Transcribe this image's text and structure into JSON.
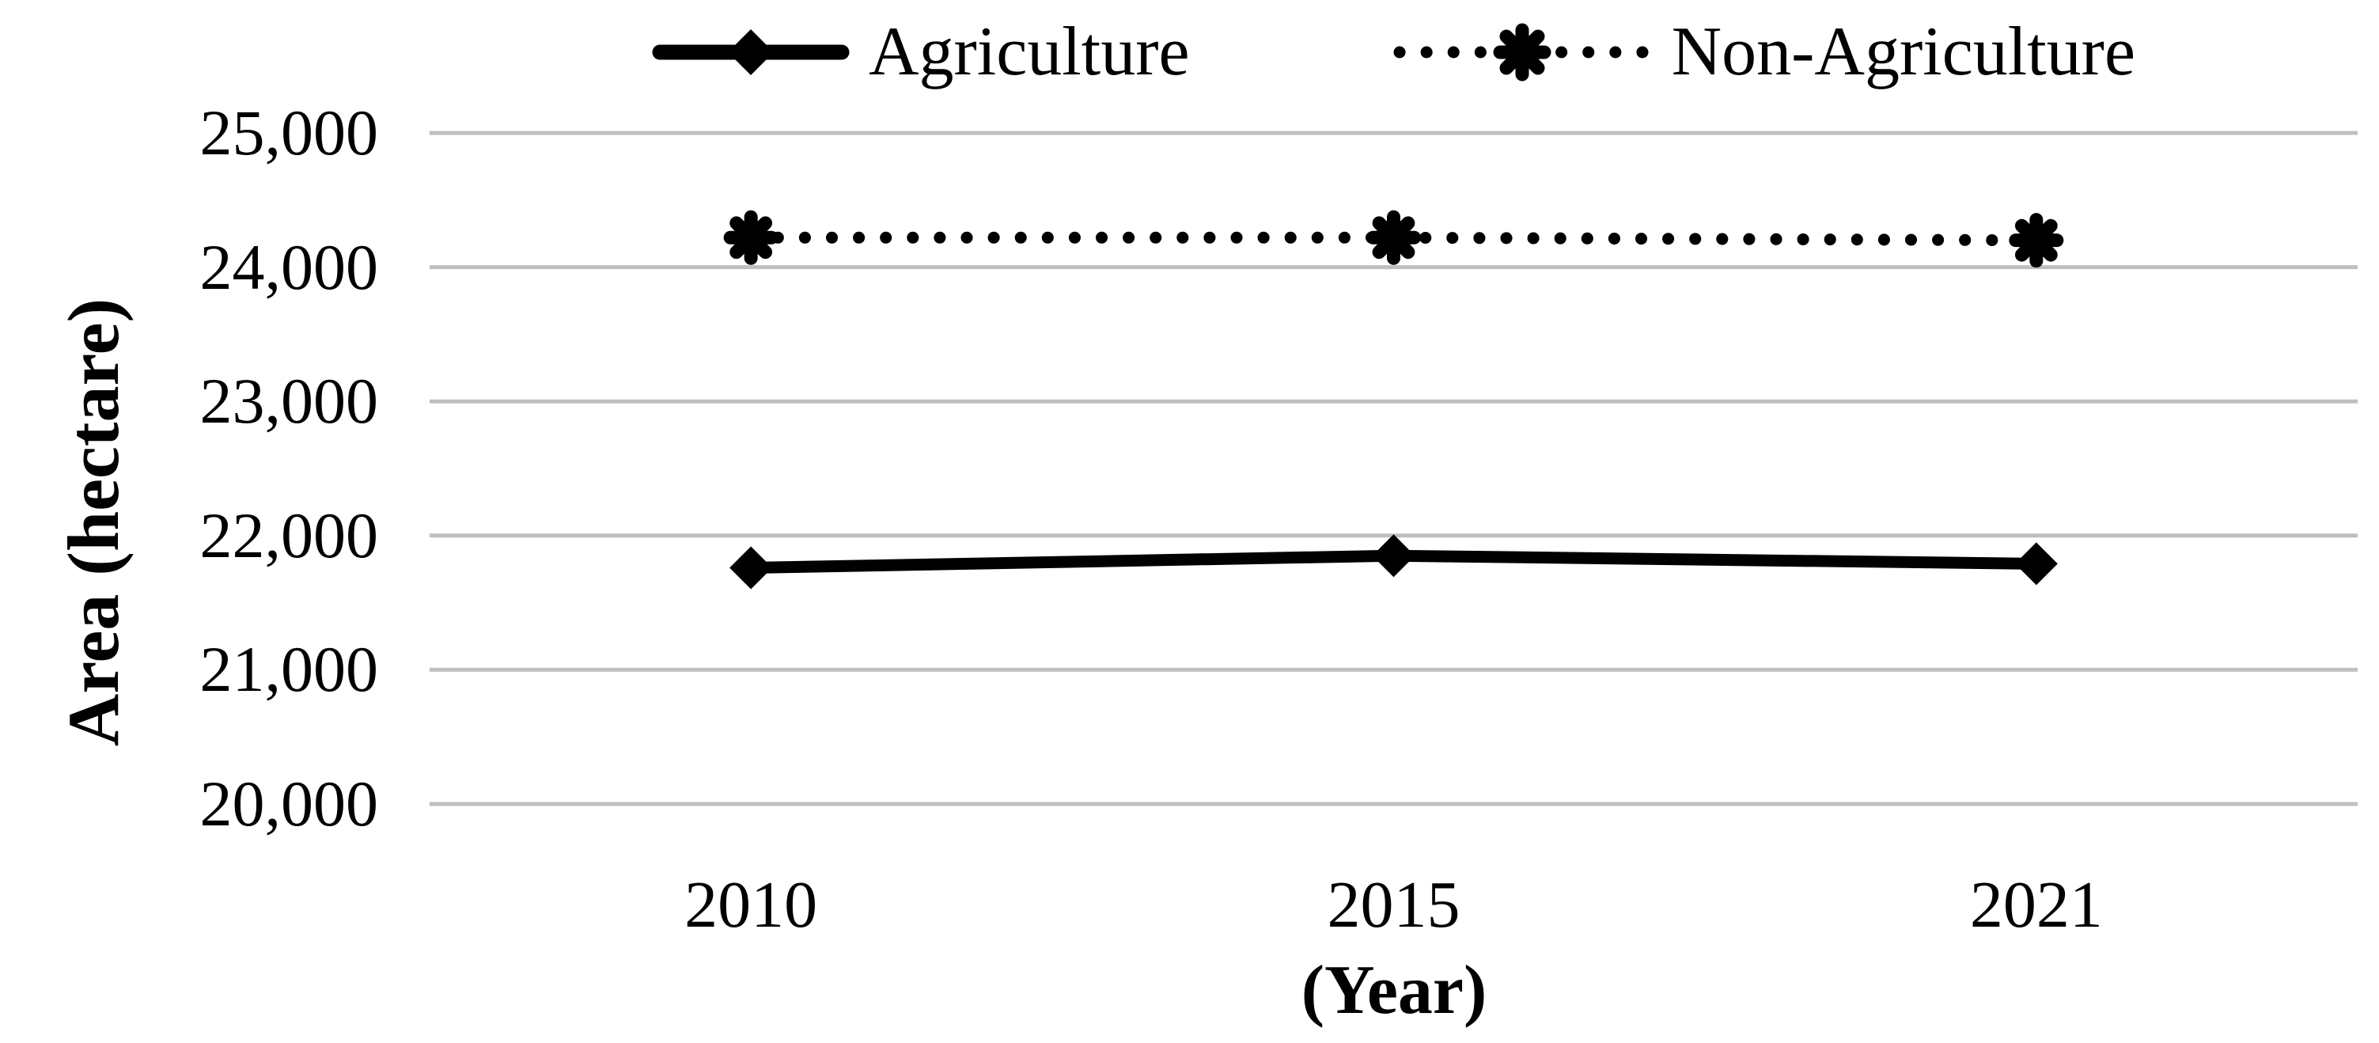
{
  "chart_data": {
    "type": "line",
    "title": "",
    "categories": [
      "2010",
      "2015",
      "2021"
    ],
    "series": [
      {
        "name": "Agriculture",
        "values": [
          21760,
          21850,
          21790
        ],
        "line_style": "solid",
        "marker": "diamond",
        "color": "#000000"
      },
      {
        "name": "Non-Agriculture",
        "values": [
          24220,
          24220,
          24200
        ],
        "line_style": "dotted",
        "marker": "star-asterisk",
        "color": "#000000"
      }
    ],
    "xlabel": "(Year)",
    "ylabel": "Area (hectare)",
    "ylim": [
      20000,
      25000
    ],
    "ytick_interval": 1000,
    "ytick_labels": [
      "25,000",
      "24,000",
      "23,000",
      "22,000",
      "21,000",
      "20,000"
    ],
    "xtick_labels": [
      "2010",
      "2015",
      "2021"
    ],
    "grid": "horizontal-only",
    "gridline_color": "#BFBFBF",
    "legend_position": "top-center",
    "background_color": "#FFFFFF"
  }
}
